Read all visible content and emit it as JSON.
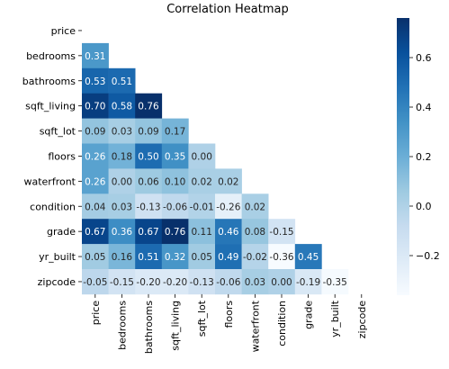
{
  "chart_data": {
    "type": "heatmap",
    "title": "Correlation Heatmap",
    "mask": "upper-triangle-including-diagonal",
    "variables": [
      "price",
      "bedrooms",
      "bathrooms",
      "sqft_living",
      "sqft_lot",
      "floors",
      "waterfront",
      "condition",
      "grade",
      "yr_built",
      "zipcode"
    ],
    "values": [
      [],
      [
        0.31
      ],
      [
        0.53,
        0.51
      ],
      [
        0.7,
        0.58,
        0.76
      ],
      [
        0.09,
        0.03,
        0.09,
        0.17
      ],
      [
        0.26,
        0.18,
        0.5,
        0.35,
        -0.0
      ],
      [
        0.26,
        -0.0,
        0.06,
        0.1,
        0.02,
        0.02
      ],
      [
        0.04,
        0.03,
        -0.13,
        -0.06,
        -0.01,
        -0.26,
        0.02
      ],
      [
        0.67,
        0.36,
        0.67,
        0.76,
        0.11,
        0.46,
        0.08,
        -0.15
      ],
      [
        0.05,
        0.16,
        0.51,
        0.32,
        0.05,
        0.49,
        -0.02,
        -0.36,
        0.45
      ],
      [
        -0.05,
        -0.15,
        -0.2,
        -0.2,
        -0.13,
        -0.06,
        0.03,
        0.0,
        -0.19,
        -0.35
      ]
    ],
    "value_format": "0.00",
    "colorbar": {
      "range": [
        -0.36,
        0.76
      ],
      "ticks": [
        0.6,
        0.4,
        0.2,
        0.0,
        -0.2
      ],
      "tick_labels": [
        "0.6",
        "0.4",
        "0.2",
        "0.0",
        "−0.2"
      ],
      "colormap": "Blues"
    }
  }
}
